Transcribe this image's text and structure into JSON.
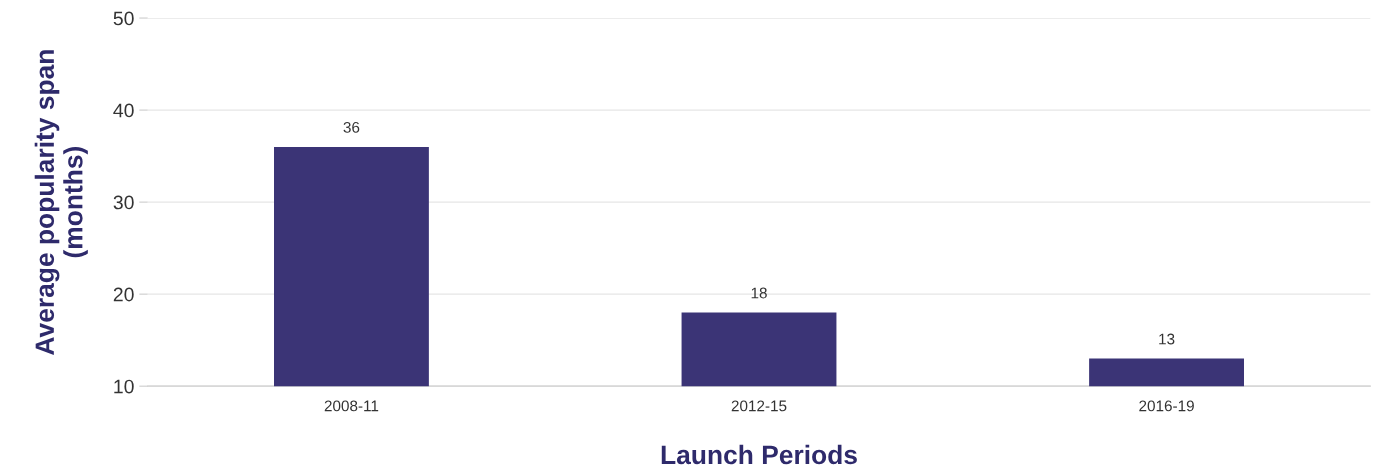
{
  "chart_data": {
    "type": "bar",
    "xlabel": "Launch Periods",
    "ylabel": "Average popularity span\n(months)",
    "categories": [
      "2008-11",
      "2012-15",
      "2016-19"
    ],
    "values": [
      36,
      18,
      13
    ],
    "color": "#3b3476",
    "ylim": [
      10,
      50
    ],
    "yticks": [
      10,
      20,
      30,
      40,
      50
    ],
    "grid": "y",
    "data_labels": true
  }
}
